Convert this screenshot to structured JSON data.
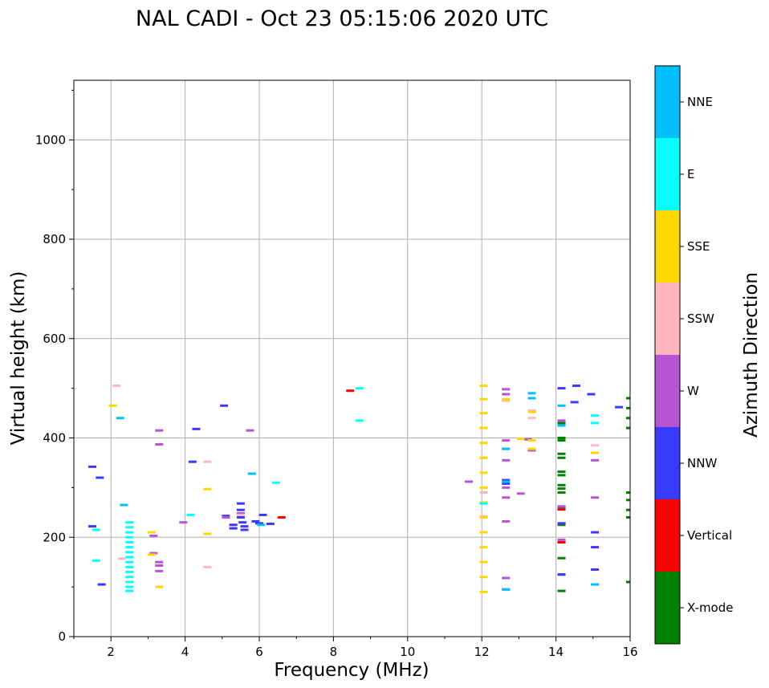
{
  "chart_data": {
    "type": "scatter",
    "title": "NAL CADI - Oct 23 05:15:06 2020 UTC",
    "xlabel": "Frequency (MHz)",
    "ylabel": "Virtual height (km)",
    "xlim": [
      1,
      16
    ],
    "ylim": [
      0,
      1120
    ],
    "x_ticks": [
      2,
      4,
      6,
      8,
      10,
      12,
      14,
      16
    ],
    "y_ticks": [
      0,
      200,
      400,
      600,
      800,
      1000
    ],
    "grid": true,
    "colorbar": {
      "label": "Azimuth Direction",
      "categories": [
        {
          "name": "X-mode",
          "color": "#008000"
        },
        {
          "name": "Vertical",
          "color": "#ff0000"
        },
        {
          "name": "NNW",
          "color": "#3a3aff"
        },
        {
          "name": "W",
          "color": "#b854d4"
        },
        {
          "name": "SSW",
          "color": "#ffb6c1"
        },
        {
          "name": "SSE",
          "color": "#ffd700"
        },
        {
          "name": "E",
          "color": "#00ffff"
        },
        {
          "name": "NNE",
          "color": "#00bfff"
        }
      ]
    },
    "series": [
      {
        "name": "X-mode",
        "points": [
          [
            14.15,
            92
          ],
          [
            14.15,
            125
          ],
          [
            14.15,
            158
          ],
          [
            14.15,
            190
          ],
          [
            14.15,
            225
          ],
          [
            14.15,
            260
          ],
          [
            14.15,
            290
          ],
          [
            14.15,
            298
          ],
          [
            14.15,
            305
          ],
          [
            14.15,
            325
          ],
          [
            14.15,
            332
          ],
          [
            14.15,
            360
          ],
          [
            14.15,
            368
          ],
          [
            14.15,
            395
          ],
          [
            14.15,
            400
          ],
          [
            14.15,
            430
          ],
          [
            16,
            110
          ],
          [
            16,
            240
          ],
          [
            16,
            255
          ],
          [
            16,
            275
          ],
          [
            16,
            290
          ],
          [
            16,
            420
          ],
          [
            16,
            440
          ],
          [
            16,
            460
          ],
          [
            16,
            480
          ]
        ]
      },
      {
        "name": "Vertical",
        "points": [
          [
            8.45,
            495
          ],
          [
            6.6,
            240
          ],
          [
            14.15,
            190
          ],
          [
            14.15,
            228
          ],
          [
            14.15,
            256
          ]
        ]
      },
      {
        "name": "NNW",
        "points": [
          [
            1.5,
            342
          ],
          [
            1.5,
            222
          ],
          [
            1.7,
            320
          ],
          [
            1.75,
            105
          ],
          [
            4.3,
            418
          ],
          [
            4.2,
            352
          ],
          [
            5.05,
            465
          ],
          [
            5.1,
            243
          ],
          [
            5.3,
            225
          ],
          [
            5.3,
            218
          ],
          [
            5.5,
            268
          ],
          [
            5.5,
            255
          ],
          [
            5.5,
            248
          ],
          [
            5.5,
            240
          ],
          [
            5.55,
            230
          ],
          [
            5.6,
            222
          ],
          [
            5.6,
            215
          ],
          [
            5.9,
            232
          ],
          [
            6.0,
            228
          ],
          [
            6.1,
            245
          ],
          [
            6.3,
            227
          ],
          [
            12.65,
            95
          ],
          [
            12.65,
            308
          ],
          [
            12.65,
            315
          ],
          [
            14.15,
            125
          ],
          [
            14.15,
            228
          ],
          [
            14.15,
            262
          ],
          [
            14.15,
            500
          ],
          [
            14.5,
            472
          ],
          [
            14.55,
            505
          ],
          [
            14.95,
            488
          ],
          [
            15.05,
            135
          ],
          [
            15.05,
            180
          ],
          [
            15.05,
            210
          ],
          [
            15.7,
            462
          ]
        ]
      },
      {
        "name": "W",
        "points": [
          [
            3.3,
            415
          ],
          [
            3.3,
            387
          ],
          [
            3.3,
            150
          ],
          [
            3.3,
            143
          ],
          [
            3.3,
            132
          ],
          [
            3.15,
            168
          ],
          [
            3.15,
            203
          ],
          [
            3.95,
            230
          ],
          [
            5.1,
            240
          ],
          [
            5.5,
            248
          ],
          [
            5.75,
            415
          ],
          [
            11.65,
            312
          ],
          [
            12.65,
            498
          ],
          [
            12.65,
            488
          ],
          [
            12.65,
            395
          ],
          [
            12.65,
            355
          ],
          [
            12.65,
            300
          ],
          [
            12.65,
            280
          ],
          [
            12.65,
            232
          ],
          [
            12.65,
            118
          ],
          [
            13.05,
            288
          ],
          [
            13.25,
            397
          ],
          [
            13.35,
            375
          ],
          [
            14.15,
            195
          ],
          [
            14.15,
            262
          ],
          [
            14.15,
            435
          ],
          [
            15.05,
            280
          ],
          [
            15.05,
            355
          ]
        ]
      },
      {
        "name": "SSW",
        "points": [
          [
            2.15,
            505
          ],
          [
            2.3,
            157
          ],
          [
            4.6,
            352
          ],
          [
            4.6,
            140
          ],
          [
            5.5,
            245
          ],
          [
            12.05,
            242
          ],
          [
            12.05,
            290
          ],
          [
            12.05,
            360
          ],
          [
            12.65,
            475
          ],
          [
            13.35,
            440
          ],
          [
            13.35,
            455
          ],
          [
            15.05,
            385
          ]
        ]
      },
      {
        "name": "SSE",
        "points": [
          [
            2.05,
            465
          ],
          [
            3.1,
            210
          ],
          [
            3.1,
            165
          ],
          [
            3.3,
            100
          ],
          [
            4.6,
            297
          ],
          [
            4.6,
            207
          ],
          [
            12.05,
            505
          ],
          [
            12.05,
            478
          ],
          [
            12.05,
            450
          ],
          [
            12.05,
            420
          ],
          [
            12.05,
            390
          ],
          [
            12.05,
            360
          ],
          [
            12.05,
            330
          ],
          [
            12.05,
            300
          ],
          [
            12.05,
            270
          ],
          [
            12.05,
            240
          ],
          [
            12.05,
            210
          ],
          [
            12.05,
            180
          ],
          [
            12.05,
            150
          ],
          [
            12.05,
            120
          ],
          [
            12.05,
            90
          ],
          [
            12.65,
            478
          ],
          [
            13.05,
            398
          ],
          [
            13.35,
            395
          ],
          [
            13.35,
            378
          ],
          [
            13.35,
            452
          ],
          [
            15.05,
            370
          ]
        ]
      },
      {
        "name": "E",
        "points": [
          [
            1.6,
            215
          ],
          [
            1.6,
            153
          ],
          [
            2.5,
            230
          ],
          [
            2.5,
            220
          ],
          [
            2.5,
            210
          ],
          [
            2.5,
            200
          ],
          [
            2.5,
            190
          ],
          [
            2.5,
            180
          ],
          [
            2.5,
            170
          ],
          [
            2.5,
            160
          ],
          [
            2.5,
            150
          ],
          [
            2.5,
            140
          ],
          [
            2.5,
            130
          ],
          [
            2.5,
            120
          ],
          [
            2.5,
            110
          ],
          [
            2.5,
            100
          ],
          [
            2.5,
            92
          ],
          [
            4.15,
            245
          ],
          [
            6.45,
            310
          ],
          [
            8.7,
            500
          ],
          [
            8.7,
            435
          ],
          [
            12.05,
            268
          ],
          [
            12.65,
            378
          ],
          [
            15.05,
            105
          ],
          [
            15.05,
            430
          ],
          [
            15.05,
            445
          ]
        ]
      },
      {
        "name": "NNE",
        "points": [
          [
            2.25,
            440
          ],
          [
            2.35,
            265
          ],
          [
            5.8,
            328
          ],
          [
            6.05,
            225
          ],
          [
            12.65,
            95
          ],
          [
            12.65,
            312
          ],
          [
            12.65,
            378
          ],
          [
            13.35,
            480
          ],
          [
            13.35,
            490
          ],
          [
            14.15,
            465
          ],
          [
            14.15,
            425
          ],
          [
            15.05,
            105
          ]
        ]
      }
    ]
  }
}
